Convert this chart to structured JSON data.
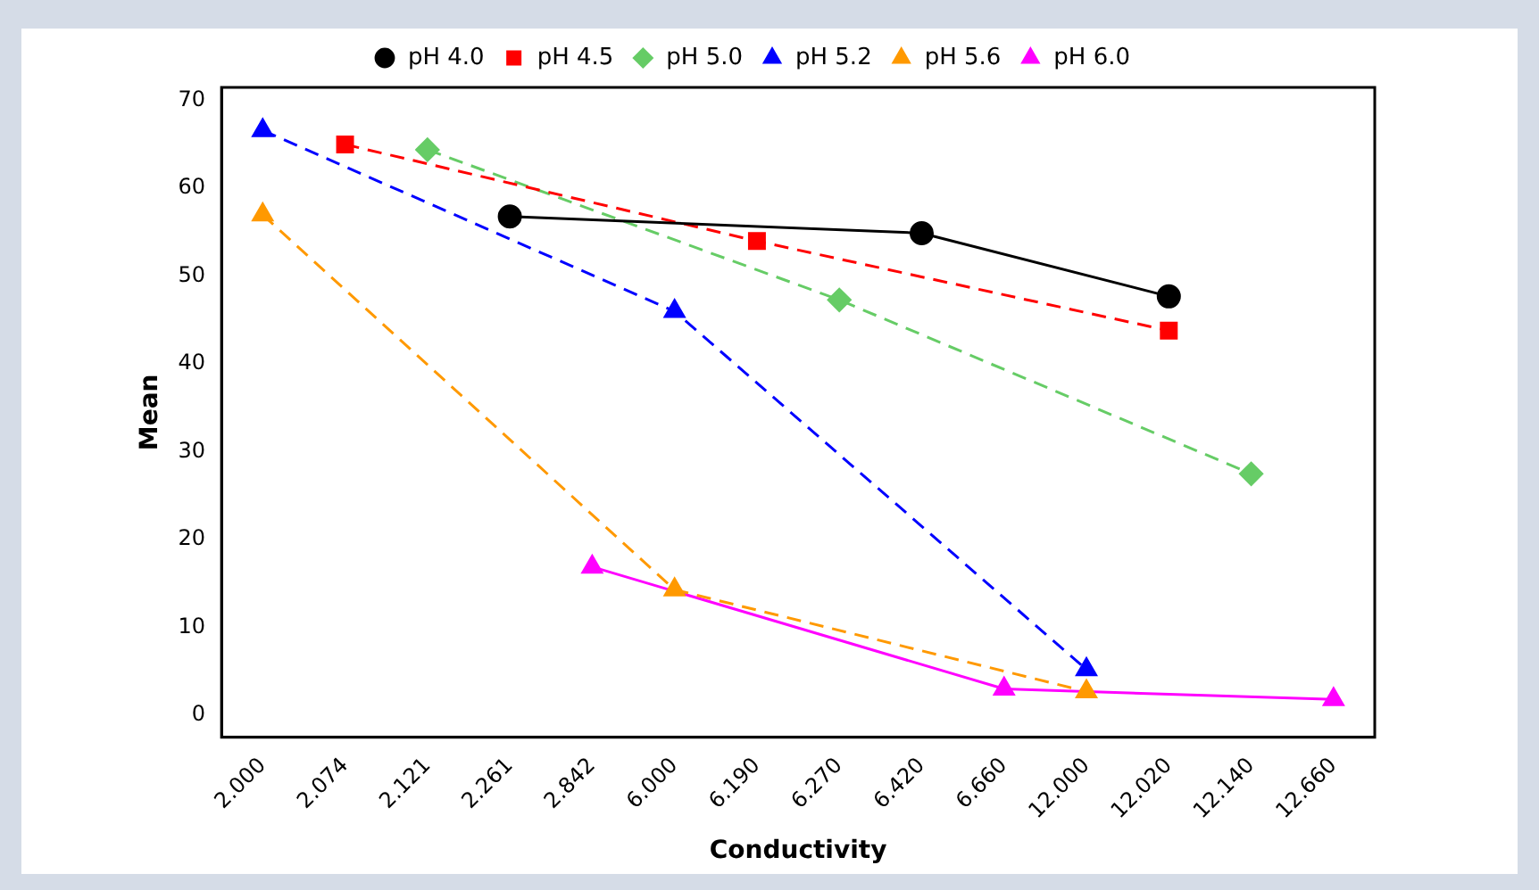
{
  "chart_data": {
    "type": "line",
    "xlabel": "Conductivity",
    "ylabel": "Mean",
    "categories": [
      "2.000",
      "2.074",
      "2.121",
      "2.261",
      "2.842",
      "6.000",
      "6.190",
      "6.270",
      "6.420",
      "6.660",
      "12.000",
      "12.020",
      "12.140",
      "12.660"
    ],
    "series": [
      {
        "name": "pH 4.0",
        "color": "#000000",
        "marker": "circle",
        "line_style": "solid",
        "values": [
          null,
          null,
          null,
          56.8,
          null,
          null,
          null,
          null,
          54.9,
          null,
          null,
          47.7,
          null,
          null
        ]
      },
      {
        "name": "pH 4.5",
        "color": "#ff0000",
        "marker": "square",
        "line_style": "dashed",
        "values": [
          null,
          65,
          null,
          null,
          null,
          null,
          54,
          null,
          null,
          null,
          null,
          43.8,
          null,
          null
        ]
      },
      {
        "name": "pH 5.0",
        "color": "#66cc66",
        "marker": "diamond",
        "line_style": "dashed",
        "values": [
          null,
          null,
          64.4,
          null,
          null,
          null,
          null,
          47.3,
          null,
          null,
          null,
          null,
          27.5,
          null
        ]
      },
      {
        "name": "pH 5.2",
        "color": "#0000ff",
        "marker": "triangle",
        "line_style": "dashed",
        "values": [
          66.6,
          null,
          null,
          null,
          null,
          46,
          null,
          null,
          null,
          null,
          5.2,
          null,
          null,
          null
        ]
      },
      {
        "name": "pH 5.6",
        "color": "#ff9900",
        "marker": "triangle",
        "line_style": "dashed",
        "values": [
          57,
          null,
          null,
          null,
          null,
          14.3,
          null,
          null,
          null,
          null,
          2.7,
          null,
          null,
          null
        ]
      },
      {
        "name": "pH 6.0",
        "color": "#ff00ff",
        "marker": "triangle",
        "line_style": "solid",
        "values": [
          null,
          null,
          null,
          null,
          16.9,
          null,
          null,
          null,
          null,
          3,
          null,
          null,
          null,
          1.8
        ]
      }
    ],
    "ylim": [
      -2.5,
      71.5
    ],
    "yticks": [
      0,
      10,
      20,
      30,
      40,
      50,
      60,
      70
    ],
    "grid": false,
    "legend": "top"
  }
}
